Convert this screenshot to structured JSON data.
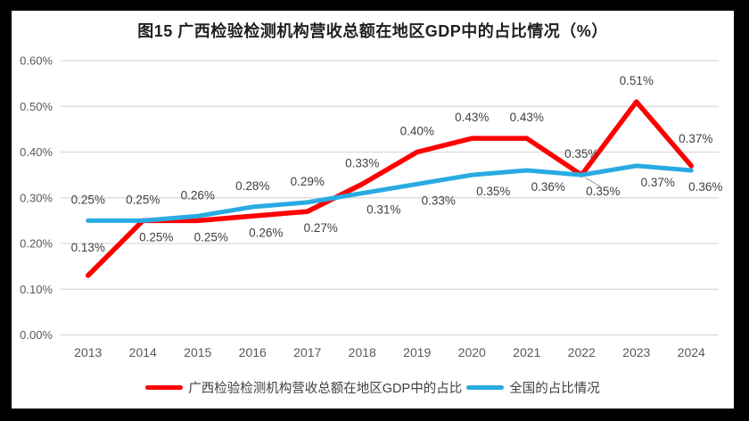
{
  "colors": {
    "frame_border": "#000000",
    "background": "#ffffff",
    "gridline": "#d9d9d9",
    "axis_text": "#595959",
    "data_label_text": "#404040",
    "leader_line": "#a6a6a6",
    "series_guangxi": "#fe0000",
    "series_national": "#29abe2"
  },
  "chart_data": {
    "type": "line",
    "title": "图15 广西检验检测机构营收总额在地区GDP中的占比情况（%）",
    "categories": [
      "2013",
      "2014",
      "2015",
      "2016",
      "2017",
      "2018",
      "2019",
      "2020",
      "2021",
      "2022",
      "2023",
      "2024"
    ],
    "series": [
      {
        "name": "广西检验检测机构营收总额在地区GDP中的占比",
        "color": "#fe0000",
        "values": [
          0.13,
          0.25,
          0.25,
          0.26,
          0.27,
          0.33,
          0.4,
          0.43,
          0.43,
          0.35,
          0.51,
          0.37
        ],
        "data_labels": [
          "0.13%",
          "0.25%",
          "0.25%",
          "0.26%",
          "0.27%",
          "0.33%",
          "0.40%",
          "0.43%",
          "0.43%",
          "0.35%",
          "0.51%",
          "0.37%"
        ],
        "label_positions": [
          "above",
          "below",
          "below",
          "below",
          "below",
          "above",
          "above",
          "above",
          "above",
          "above",
          "above",
          "above"
        ]
      },
      {
        "name": "全国的占比情况",
        "color": "#29abe2",
        "values": [
          0.25,
          0.25,
          0.26,
          0.28,
          0.29,
          0.31,
          0.33,
          0.35,
          0.36,
          0.35,
          0.37,
          0.36
        ],
        "data_labels": [
          "0.25%",
          "0.25%",
          "0.26%",
          "0.28%",
          "0.29%",
          "0.31%",
          "0.33%",
          "0.35%",
          "0.36%",
          "0.35%",
          "0.37%",
          "0.36%"
        ],
        "label_positions": [
          "above",
          "above",
          "above",
          "above",
          "above",
          "below",
          "below",
          "below",
          "below",
          "below-leader",
          "below",
          "below"
        ]
      }
    ],
    "y_axis": {
      "ticks": [
        "0.00%",
        "0.10%",
        "0.20%",
        "0.30%",
        "0.40%",
        "0.50%",
        "0.60%"
      ],
      "min": 0,
      "max": 0.6
    },
    "x_axis_label": "",
    "y_axis_label": "",
    "grid": true,
    "legend_position": "bottom"
  }
}
